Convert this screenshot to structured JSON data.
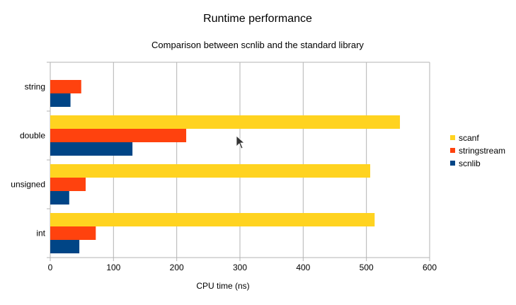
{
  "chart_data": {
    "type": "bar",
    "orientation": "horizontal",
    "title": "Runtime performance",
    "subtitle": "Comparison between scnlib and the standard library",
    "xlabel": "CPU time (ns)",
    "ylabel": "",
    "xlim": [
      0,
      600
    ],
    "xticks": [
      0,
      100,
      200,
      300,
      400,
      500,
      600
    ],
    "grid": "vertical",
    "legend_position": "right",
    "categories": [
      "string",
      "double",
      "unsigned",
      "int"
    ],
    "series": [
      {
        "name": "scanf",
        "color": "#ffd320",
        "values": [
          null,
          553,
          506,
          513
        ]
      },
      {
        "name": "stringstream",
        "color": "#ff420e",
        "values": [
          49,
          215,
          56,
          72
        ]
      },
      {
        "name": "scnlib",
        "color": "#004586",
        "values": [
          32,
          130,
          30,
          46
        ]
      }
    ]
  },
  "cursor": {
    "icon": "mouse-pointer-icon"
  }
}
